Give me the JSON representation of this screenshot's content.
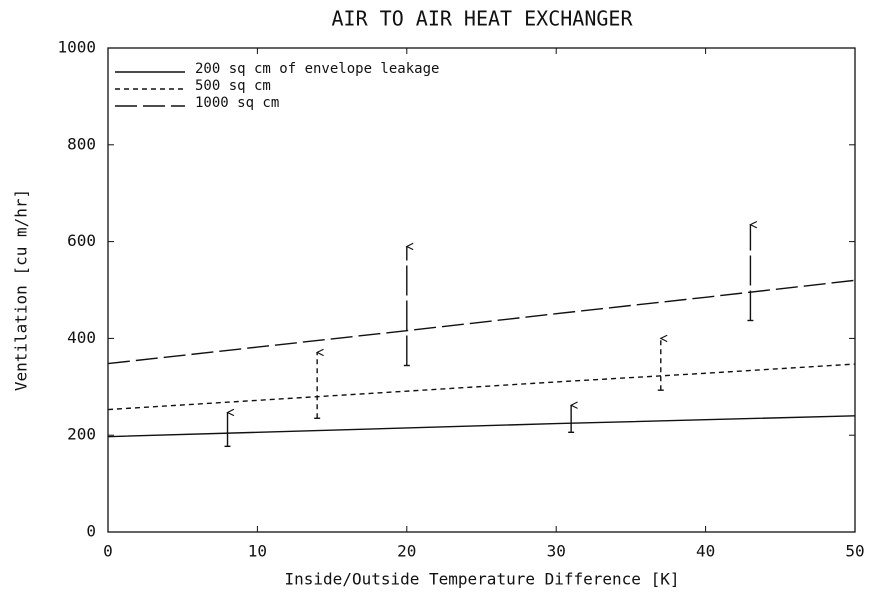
{
  "chart_data": {
    "type": "line",
    "title": "AIR TO AIR HEAT EXCHANGER",
    "xlabel": "Inside/Outside Temperature Difference [K]",
    "ylabel": "Ventilation [cu m/hr]",
    "x": [
      0,
      10,
      20,
      30,
      40,
      50
    ],
    "xlim": [
      0,
      50
    ],
    "xticks": [
      0,
      10,
      20,
      30,
      40,
      50
    ],
    "ylim": [
      0,
      1000
    ],
    "yticks": [
      0,
      200,
      400,
      600,
      800,
      1000
    ],
    "grid": false,
    "legend": "upper left",
    "series": [
      {
        "name": "200 sq cm of envelope leakage",
        "color": "#111111",
        "dash": "solid",
        "values": [
          197,
          206,
          215,
          224,
          232,
          240
        ],
        "arrow_x": [
          8,
          31
        ],
        "arrow_low": [
          177,
          206
        ],
        "arrow_high": [
          247,
          262
        ]
      },
      {
        "name": "500 sq cm",
        "color": "#111111",
        "dash": "dashed",
        "values": [
          253,
          272,
          291,
          310,
          328,
          347
        ],
        "arrow_x": [
          14,
          37
        ],
        "arrow_low": [
          235,
          293
        ],
        "arrow_high": [
          371,
          400
        ]
      },
      {
        "name": "1000 sq cm",
        "color": "#111111",
        "dash": "long-dash",
        "values": [
          348,
          382,
          416,
          451,
          485,
          520
        ],
        "arrow_x": [
          20,
          43
        ],
        "arrow_low": [
          344,
          437
        ],
        "arrow_high": [
          590,
          635
        ]
      }
    ]
  }
}
